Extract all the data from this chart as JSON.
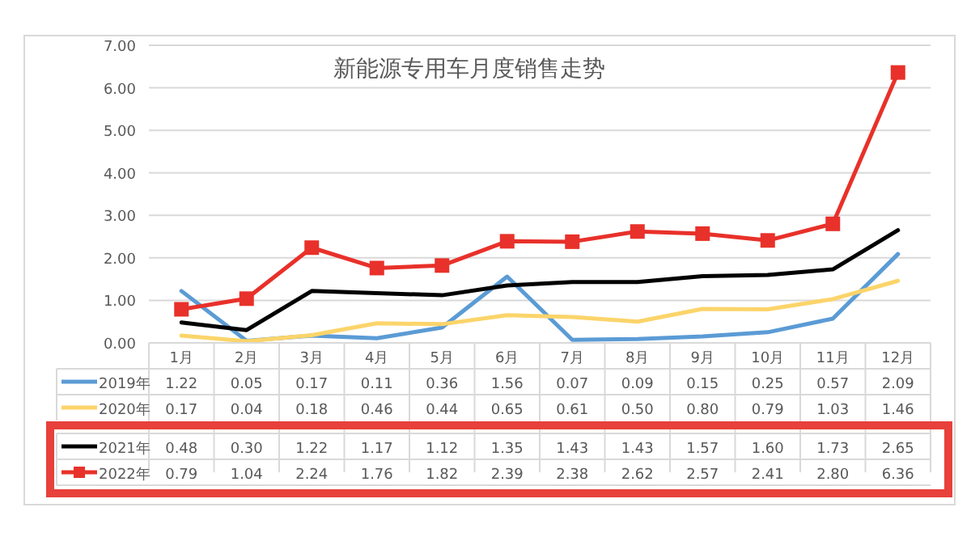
{
  "chart_data": {
    "type": "line",
    "title": "新能源专用车月度销售走势",
    "categories": [
      "1月",
      "2月",
      "3月",
      "4月",
      "5月",
      "6月",
      "7月",
      "8月",
      "9月",
      "10月",
      "11月",
      "12月"
    ],
    "ylim": [
      0,
      7
    ],
    "yticks": [
      {
        "value": 0,
        "label": "0.00"
      },
      {
        "value": 1,
        "label": "1.00"
      },
      {
        "value": 2,
        "label": "2.00"
      },
      {
        "value": 3,
        "label": "3.00"
      },
      {
        "value": 4,
        "label": "4.00"
      },
      {
        "value": 5,
        "label": "5.00"
      },
      {
        "value": 6,
        "label": "6.00"
      },
      {
        "value": 7,
        "label": "7.00"
      }
    ],
    "grid": "y",
    "legend": "bottom",
    "line_style": "solid",
    "series": [
      {
        "name": "2019年",
        "color": "#5b9bd5",
        "marker": "none",
        "values": [
          1.22,
          0.05,
          0.17,
          0.11,
          0.36,
          1.56,
          0.07,
          0.09,
          0.15,
          0.25,
          0.57,
          2.09
        ],
        "value_labels": [
          "1.22",
          "0.05",
          "0.17",
          "0.11",
          "0.36",
          "1.56",
          "0.07",
          "0.09",
          "0.15",
          "0.25",
          "0.57",
          "2.09"
        ]
      },
      {
        "name": "2020年",
        "color": "#fbd46a",
        "marker": "none",
        "values": [
          0.17,
          0.04,
          0.18,
          0.46,
          0.44,
          0.65,
          0.61,
          0.5,
          0.8,
          0.79,
          1.03,
          1.46
        ],
        "value_labels": [
          "0.17",
          "0.04",
          "0.18",
          "0.46",
          "0.44",
          "0.65",
          "0.61",
          "0.50",
          "0.80",
          "0.79",
          "1.03",
          "1.46"
        ]
      },
      {
        "name": "2021年",
        "color": "#000000",
        "marker": "none",
        "values": [
          0.48,
          0.3,
          1.22,
          1.17,
          1.12,
          1.35,
          1.43,
          1.43,
          1.57,
          1.6,
          1.73,
          2.65
        ],
        "value_labels": [
          "0.48",
          "0.30",
          "1.22",
          "1.17",
          "1.12",
          "1.35",
          "1.43",
          "1.43",
          "1.57",
          "1.60",
          "1.73",
          "2.65"
        ]
      },
      {
        "name": "2022年",
        "color": "#e8312a",
        "marker": "square",
        "values": [
          0.79,
          1.04,
          2.24,
          1.76,
          1.82,
          2.39,
          2.38,
          2.62,
          2.57,
          2.41,
          2.8,
          6.36
        ],
        "value_labels": [
          "0.79",
          "1.04",
          "2.24",
          "1.76",
          "1.82",
          "2.39",
          "2.38",
          "2.62",
          "2.57",
          "2.41",
          "2.80",
          "6.36"
        ]
      }
    ]
  }
}
